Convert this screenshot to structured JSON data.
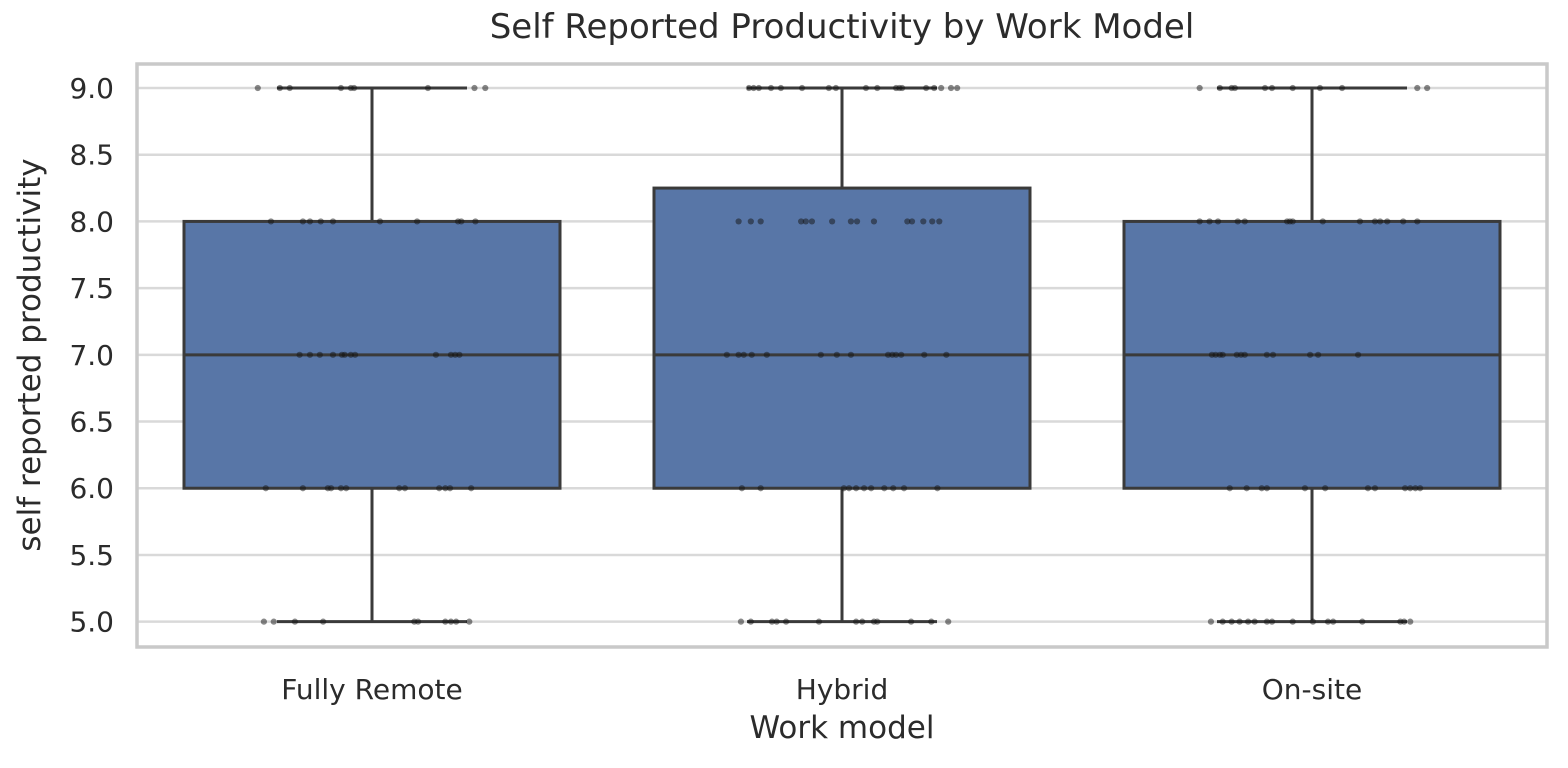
{
  "figure": {
    "title": "Self Reported Productivity by Work Model",
    "xlabel": "Work model",
    "ylabel": "self reported productivity"
  },
  "chart_data": {
    "type": "boxplot+strip",
    "title": "Self Reported Productivity by Work Model",
    "xlabel": "Work model",
    "ylabel": "self reported productivity",
    "categories": [
      "Fully Remote",
      "Hybrid",
      "On-site"
    ],
    "ylim": [
      4.81,
      9.18
    ],
    "yticks": [
      5.0,
      5.5,
      6.0,
      6.5,
      7.0,
      7.5,
      8.0,
      8.5,
      9.0
    ],
    "grid": "horizontal-only",
    "legend": "none",
    "boxes": [
      {
        "category": "Fully Remote",
        "whisker_low": 5.0,
        "q1": 6.0,
        "median": 7.0,
        "q3": 8.0,
        "whisker_high": 9.0
      },
      {
        "category": "Hybrid",
        "whisker_low": 5.0,
        "q1": 6.0,
        "median": 7.0,
        "q3": 8.25,
        "whisker_high": 9.0
      },
      {
        "category": "On-site",
        "whisker_low": 5.0,
        "q1": 6.0,
        "median": 7.0,
        "q3": 8.0,
        "whisker_high": 9.0
      }
    ],
    "strip_points_note": "pairs of [productivity value, jitter offset as fraction of category slot width]",
    "strip": [
      [
        [
          9,
          -0.243
        ],
        [
          9,
          -0.196
        ],
        [
          9,
          -0.175
        ],
        [
          9,
          -0.066
        ],
        [
          9,
          -0.045
        ],
        [
          9,
          -0.038
        ],
        [
          9,
          0.119
        ],
        [
          9,
          0.218
        ],
        [
          9,
          0.241
        ],
        [
          8,
          -0.215
        ],
        [
          8,
          -0.147
        ],
        [
          8,
          -0.132
        ],
        [
          8,
          -0.109
        ],
        [
          8,
          -0.083
        ],
        [
          8,
          0.017
        ],
        [
          8,
          0.096
        ],
        [
          8,
          0.183
        ],
        [
          8,
          0.19
        ],
        [
          8,
          0.22
        ],
        [
          7,
          -0.154
        ],
        [
          7,
          -0.132
        ],
        [
          7,
          -0.111
        ],
        [
          7,
          -0.083
        ],
        [
          7,
          -0.064
        ],
        [
          7,
          -0.058
        ],
        [
          7,
          -0.045
        ],
        [
          7,
          -0.036
        ],
        [
          7,
          0.136
        ],
        [
          7,
          0.168
        ],
        [
          7,
          0.177
        ],
        [
          7,
          0.186
        ],
        [
          6,
          -0.226
        ],
        [
          6,
          -0.147
        ],
        [
          6,
          -0.094
        ],
        [
          6,
          -0.087
        ],
        [
          6,
          -0.066
        ],
        [
          6,
          -0.055
        ],
        [
          6,
          0.058
        ],
        [
          6,
          0.07
        ],
        [
          6,
          0.143
        ],
        [
          6,
          0.156
        ],
        [
          6,
          0.166
        ],
        [
          6,
          0.211
        ],
        [
          5,
          -0.23
        ],
        [
          5,
          -0.209
        ],
        [
          5,
          -0.164
        ],
        [
          5,
          -0.104
        ],
        [
          5,
          0.09
        ],
        [
          5,
          0.098
        ],
        [
          5,
          0.156
        ],
        [
          5,
          0.168
        ],
        [
          5,
          0.179
        ],
        [
          5,
          0.207
        ]
      ],
      [
        [
          9,
          -0.198
        ],
        [
          9,
          -0.188
        ],
        [
          9,
          -0.177
        ],
        [
          9,
          -0.151
        ],
        [
          9,
          -0.13
        ],
        [
          9,
          -0.085
        ],
        [
          9,
          -0.028
        ],
        [
          9,
          -0.013
        ],
        [
          9,
          0.051
        ],
        [
          9,
          0.075
        ],
        [
          9,
          0.115
        ],
        [
          9,
          0.122
        ],
        [
          9,
          0.128
        ],
        [
          9,
          0.179
        ],
        [
          9,
          0.196
        ],
        [
          9,
          0.211
        ],
        [
          9,
          0.232
        ],
        [
          9,
          0.245
        ],
        [
          8,
          -0.22
        ],
        [
          8,
          -0.194
        ],
        [
          8,
          -0.173
        ],
        [
          8,
          -0.087
        ],
        [
          8,
          -0.077
        ],
        [
          8,
          -0.064
        ],
        [
          8,
          -0.021
        ],
        [
          8,
          0.019
        ],
        [
          8,
          0.032
        ],
        [
          8,
          0.068
        ],
        [
          8,
          0.139
        ],
        [
          8,
          0.149
        ],
        [
          8,
          0.173
        ],
        [
          8,
          0.192
        ],
        [
          8,
          0.207
        ],
        [
          7,
          -0.245
        ],
        [
          7,
          -0.22
        ],
        [
          7,
          -0.209
        ],
        [
          7,
          -0.192
        ],
        [
          7,
          -0.16
        ],
        [
          7,
          -0.045
        ],
        [
          7,
          -0.011
        ],
        [
          7,
          0.019
        ],
        [
          7,
          0.098
        ],
        [
          7,
          0.107
        ],
        [
          7,
          0.115
        ],
        [
          7,
          0.126
        ],
        [
          7,
          0.175
        ],
        [
          7,
          0.222
        ],
        [
          6,
          -0.213
        ],
        [
          6,
          -0.173
        ],
        [
          6,
          0.004
        ],
        [
          6,
          0.015
        ],
        [
          6,
          0.03
        ],
        [
          6,
          0.047
        ],
        [
          6,
          0.062
        ],
        [
          6,
          0.09
        ],
        [
          6,
          0.109
        ],
        [
          6,
          0.132
        ],
        [
          6,
          0.203
        ],
        [
          5,
          -0.215
        ],
        [
          5,
          -0.194
        ],
        [
          5,
          -0.149
        ],
        [
          5,
          -0.139
        ],
        [
          5,
          -0.119
        ],
        [
          5,
          -0.049
        ],
        [
          5,
          0.03
        ],
        [
          5,
          0.043
        ],
        [
          5,
          0.068
        ],
        [
          5,
          0.075
        ],
        [
          5,
          0.147
        ],
        [
          5,
          0.19
        ],
        [
          5,
          0.226
        ]
      ],
      [
        [
          9,
          -0.239
        ],
        [
          9,
          -0.196
        ],
        [
          9,
          -0.171
        ],
        [
          9,
          -0.164
        ],
        [
          9,
          -0.1
        ],
        [
          9,
          -0.085
        ],
        [
          9,
          -0.041
        ],
        [
          9,
          0.017
        ],
        [
          9,
          0.064
        ],
        [
          9,
          0.224
        ],
        [
          9,
          0.245
        ],
        [
          8,
          -0.239
        ],
        [
          8,
          -0.218
        ],
        [
          8,
          -0.2
        ],
        [
          8,
          -0.158
        ],
        [
          8,
          -0.143
        ],
        [
          8,
          -0.053
        ],
        [
          8,
          -0.047
        ],
        [
          8,
          -0.041
        ],
        [
          8,
          0.023
        ],
        [
          8,
          0.102
        ],
        [
          8,
          0.134
        ],
        [
          8,
          0.145
        ],
        [
          8,
          0.16
        ],
        [
          8,
          0.194
        ],
        [
          8,
          0.224
        ],
        [
          7,
          -0.213
        ],
        [
          7,
          -0.205
        ],
        [
          7,
          -0.196
        ],
        [
          7,
          -0.19
        ],
        [
          7,
          -0.16
        ],
        [
          7,
          -0.151
        ],
        [
          7,
          -0.143
        ],
        [
          7,
          -0.096
        ],
        [
          7,
          -0.083
        ],
        [
          7,
          -0.004
        ],
        [
          7,
          0.013
        ],
        [
          7,
          0.098
        ],
        [
          6,
          -0.175
        ],
        [
          6,
          -0.139
        ],
        [
          6,
          -0.107
        ],
        [
          6,
          -0.096
        ],
        [
          6,
          -0.015
        ],
        [
          6,
          0.028
        ],
        [
          6,
          0.119
        ],
        [
          6,
          0.134
        ],
        [
          6,
          0.198
        ],
        [
          6,
          0.209
        ],
        [
          6,
          0.22
        ],
        [
          6,
          0.23
        ],
        [
          5,
          -0.215
        ],
        [
          5,
          -0.19
        ],
        [
          5,
          -0.171
        ],
        [
          5,
          -0.154
        ],
        [
          5,
          -0.136
        ],
        [
          5,
          -0.122
        ],
        [
          5,
          -0.096
        ],
        [
          5,
          -0.085
        ],
        [
          5,
          -0.041
        ],
        [
          5,
          0.002
        ],
        [
          5,
          0.034
        ],
        [
          5,
          0.045
        ],
        [
          5,
          0.107
        ],
        [
          5,
          0.188
        ],
        [
          5,
          0.196
        ],
        [
          5,
          0.209
        ]
      ]
    ],
    "colors": {
      "box_fill": "#5876A7",
      "box_edge": "#3A3A3A",
      "median_line": "#3A3A3A",
      "whisker": "#3A3A3A",
      "strip_point": "#141414",
      "gridline": "#D9D9D9",
      "spine": "#C9C9C9",
      "text": "#2B2B2B",
      "background": "#FFFFFF"
    }
  }
}
